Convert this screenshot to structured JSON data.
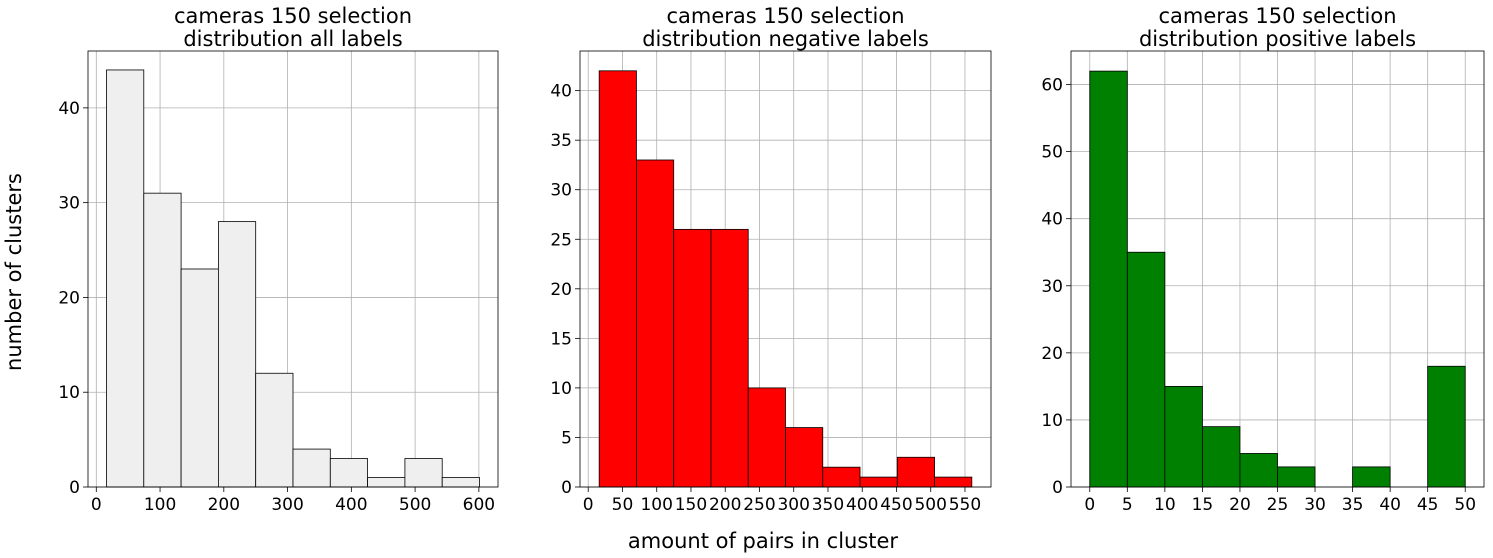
{
  "figure": {
    "ylabel": "number of clusters",
    "xlabel": "amount of pairs in cluster"
  },
  "chart_data": [
    {
      "type": "bar",
      "title_lines": [
        "cameras 150 selection",
        "distribution all labels"
      ],
      "bar_color": "#efefef",
      "bin_edges": [
        16,
        74.5,
        133,
        191.5,
        250,
        308.5,
        367,
        425.5,
        484,
        542.5,
        601
      ],
      "values": [
        44,
        31,
        23,
        28,
        12,
        4,
        3,
        1,
        3,
        1
      ],
      "xlim": [
        -13,
        630
      ],
      "ylim": [
        0,
        46
      ],
      "xticks": [
        0,
        100,
        200,
        300,
        400,
        500,
        600
      ],
      "xtick_labels": [
        "0",
        "100",
        "200",
        "300",
        "400",
        "500",
        "600"
      ],
      "yticks": [
        0,
        10,
        20,
        30,
        40
      ],
      "ytick_labels": [
        "0",
        "10",
        "20",
        "30",
        "40"
      ],
      "grid": true
    },
    {
      "type": "bar",
      "title_lines": [
        "cameras 150 selection",
        "distribution negative labels"
      ],
      "bar_color": "#ff0000",
      "bin_edges": [
        16,
        70.4,
        124.8,
        179.2,
        233.6,
        288,
        342.4,
        396.8,
        451.2,
        505.6,
        560
      ],
      "values": [
        42,
        33,
        26,
        26,
        10,
        6,
        2,
        1,
        3,
        1
      ],
      "xlim": [
        -12,
        588
      ],
      "ylim": [
        0,
        44
      ],
      "xticks": [
        0,
        50,
        100,
        150,
        200,
        250,
        300,
        350,
        400,
        450,
        500,
        550
      ],
      "xtick_labels": [
        "0",
        "50",
        "100",
        "150",
        "200",
        "250",
        "300",
        "350",
        "400",
        "450",
        "500",
        "550"
      ],
      "yticks": [
        0,
        5,
        10,
        15,
        20,
        25,
        30,
        35,
        40
      ],
      "ytick_labels": [
        "0",
        "5",
        "10",
        "15",
        "20",
        "25",
        "30",
        "35",
        "40"
      ],
      "grid": true
    },
    {
      "type": "bar",
      "title_lines": [
        "cameras 150 selection",
        "distribution positive labels"
      ],
      "bar_color": "#008000",
      "bin_edges": [
        0,
        5,
        10,
        15,
        20,
        25,
        30,
        35,
        40,
        45,
        50
      ],
      "values": [
        62,
        35,
        15,
        9,
        5,
        3,
        0,
        3,
        0,
        18
      ],
      "xlim": [
        -2.5,
        52.5
      ],
      "ylim": [
        0,
        65
      ],
      "xticks": [
        0,
        5,
        10,
        15,
        20,
        25,
        30,
        35,
        40,
        45,
        50
      ],
      "xtick_labels": [
        "0",
        "5",
        "10",
        "15",
        "20",
        "25",
        "30",
        "35",
        "40",
        "45",
        "50"
      ],
      "yticks": [
        0,
        10,
        20,
        30,
        40,
        50,
        60
      ],
      "ytick_labels": [
        "0",
        "10",
        "20",
        "30",
        "40",
        "50",
        "60"
      ],
      "grid": true
    }
  ]
}
